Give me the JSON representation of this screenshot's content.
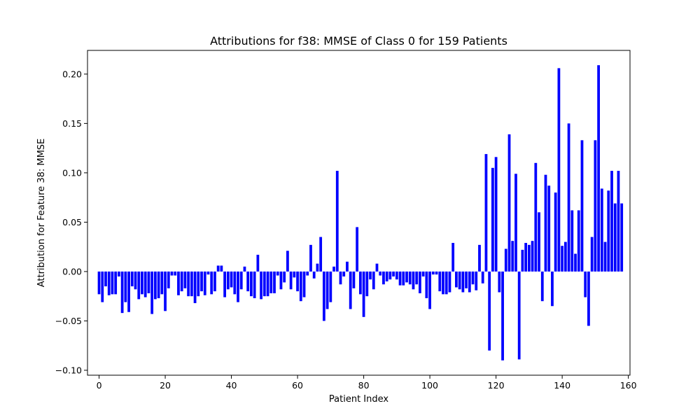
{
  "chart_data": {
    "type": "bar",
    "title": "Attributions for f38: MMSE of Class 0 for 159 Patients",
    "xlabel": "Patient Index",
    "ylabel": "Attribution for Feature 38: MMSE",
    "xlim": [
      -3.5,
      160.5
    ],
    "ylim": [
      -0.105,
      0.224
    ],
    "xticks": [
      0,
      20,
      40,
      60,
      80,
      100,
      120,
      140,
      160
    ],
    "yticks": [
      -0.1,
      -0.05,
      0.0,
      0.05,
      0.1,
      0.15,
      0.2
    ],
    "ytick_labels": [
      "−0.10",
      "−0.05",
      "0.00",
      "0.05",
      "0.10",
      "0.15",
      "0.20"
    ],
    "grid": false,
    "bar_color": "#0000ff",
    "x": [
      0,
      1,
      2,
      3,
      4,
      5,
      6,
      7,
      8,
      9,
      10,
      11,
      12,
      13,
      14,
      15,
      16,
      17,
      18,
      19,
      20,
      21,
      22,
      23,
      24,
      25,
      26,
      27,
      28,
      29,
      30,
      31,
      32,
      33,
      34,
      35,
      36,
      37,
      38,
      39,
      40,
      41,
      42,
      43,
      44,
      45,
      46,
      47,
      48,
      49,
      50,
      51,
      52,
      53,
      54,
      55,
      56,
      57,
      58,
      59,
      60,
      61,
      62,
      63,
      64,
      65,
      66,
      67,
      68,
      69,
      70,
      71,
      72,
      73,
      74,
      75,
      76,
      77,
      78,
      79,
      80,
      81,
      82,
      83,
      84,
      85,
      86,
      87,
      88,
      89,
      90,
      91,
      92,
      93,
      94,
      95,
      96,
      97,
      98,
      99,
      100,
      101,
      102,
      103,
      104,
      105,
      106,
      107,
      108,
      109,
      110,
      111,
      112,
      113,
      114,
      115,
      116,
      117,
      118,
      119,
      120,
      121,
      122,
      123,
      124,
      125,
      126,
      127,
      128,
      129,
      130,
      131,
      132,
      133,
      134,
      135,
      136,
      137,
      138,
      139,
      140,
      141,
      142,
      143,
      144,
      145,
      146,
      147,
      148,
      149,
      150,
      151,
      152,
      153,
      154,
      155,
      156,
      157,
      158
    ],
    "values": [
      -0.023,
      -0.031,
      -0.015,
      -0.024,
      -0.023,
      -0.023,
      -0.005,
      -0.042,
      -0.031,
      -0.041,
      -0.015,
      -0.018,
      -0.028,
      -0.023,
      -0.026,
      -0.022,
      -0.043,
      -0.028,
      -0.027,
      -0.023,
      -0.04,
      -0.017,
      -0.004,
      -0.004,
      -0.024,
      -0.02,
      -0.017,
      -0.025,
      -0.025,
      -0.032,
      -0.025,
      -0.02,
      -0.024,
      -0.003,
      -0.023,
      -0.02,
      0.006,
      0.006,
      -0.026,
      -0.018,
      -0.016,
      -0.023,
      -0.031,
      -0.018,
      0.005,
      -0.02,
      -0.025,
      -0.027,
      0.017,
      -0.028,
      -0.025,
      -0.025,
      -0.022,
      -0.022,
      -0.004,
      -0.018,
      -0.011,
      0.021,
      -0.018,
      -0.006,
      -0.02,
      -0.03,
      -0.026,
      -0.004,
      0.027,
      -0.007,
      0.008,
      0.035,
      -0.05,
      -0.038,
      -0.031,
      0.005,
      0.102,
      -0.013,
      -0.005,
      0.01,
      -0.038,
      -0.017,
      0.045,
      -0.023,
      -0.046,
      -0.025,
      -0.008,
      -0.018,
      0.008,
      -0.004,
      -0.013,
      -0.01,
      -0.008,
      -0.005,
      -0.008,
      -0.014,
      -0.014,
      -0.011,
      -0.013,
      -0.018,
      -0.013,
      -0.022,
      -0.005,
      -0.027,
      -0.038,
      -0.003,
      -0.003,
      -0.02,
      -0.023,
      -0.023,
      -0.021,
      0.029,
      -0.016,
      -0.018,
      -0.021,
      -0.017,
      -0.021,
      -0.013,
      -0.019,
      0.027,
      -0.012,
      0.119,
      -0.08,
      0.105,
      0.116,
      -0.021,
      -0.09,
      0.023,
      0.139,
      0.031,
      0.099,
      -0.089,
      0.022,
      0.029,
      0.027,
      0.031,
      0.11,
      0.06,
      -0.03,
      0.098,
      0.087,
      -0.035,
      0.08,
      0.206,
      0.026,
      0.03,
      0.15,
      0.062,
      0.018,
      0.062,
      0.133,
      -0.026,
      -0.055,
      0.035,
      0.133,
      0.209,
      0.084,
      0.03,
      0.082,
      0.102,
      0.069,
      0.102,
      0.069
    ]
  }
}
